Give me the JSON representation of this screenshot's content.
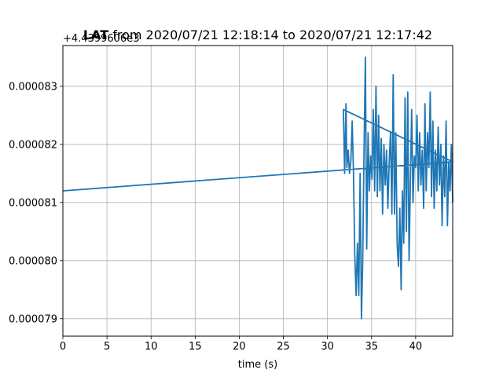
{
  "chart_data": {
    "type": "line",
    "title": "LAT from 2020/07/21 12:18:14 to 2020/07/21 12:17:42",
    "title_bold_part": "LAT",
    "title_rest": " from 2020/07/21 12:18:14 to 2020/07/21 12:17:42",
    "offset_label": "+4.4399606e3",
    "xlabel": "time (s)",
    "ylabel": "",
    "xlim": [
      0,
      44.2
    ],
    "ylim": [
      7.87e-05,
      8.37e-05
    ],
    "xticks": [
      0,
      5,
      10,
      15,
      20,
      25,
      30,
      35,
      40
    ],
    "xtick_labels": [
      "0",
      "5",
      "10",
      "15",
      "20",
      "25",
      "30",
      "35",
      "40"
    ],
    "yticks": [
      7.9e-05,
      8e-05,
      8.1e-05,
      8.2e-05,
      8.3e-05
    ],
    "ytick_labels": [
      "0.000079",
      "0.000080",
      "0.000081",
      "0.000082",
      "0.000083"
    ],
    "grid": true,
    "series": [
      {
        "color": "#1f77b4",
        "x": [
          0,
          44.2,
          31.8,
          31.95,
          32.1,
          32.2,
          32.35,
          32.5,
          32.65,
          32.8,
          32.95,
          33.1,
          33.25,
          33.4,
          33.55,
          33.7,
          33.85,
          34.0,
          34.15,
          34.3,
          34.45,
          34.6,
          34.75,
          34.9,
          35.05,
          35.2,
          35.35,
          35.5,
          35.65,
          35.8,
          35.95,
          36.1,
          36.25,
          36.4,
          36.55,
          36.7,
          36.85,
          37.0,
          37.15,
          37.3,
          37.45,
          37.6,
          37.75,
          37.9,
          38.05,
          38.2,
          38.35,
          38.5,
          38.65,
          38.8,
          38.95,
          39.1,
          39.25,
          39.4,
          39.55,
          39.7,
          39.85,
          40.0,
          40.15,
          40.3,
          40.45,
          40.6,
          40.75,
          40.9,
          41.05,
          41.2,
          41.35,
          41.5,
          41.65,
          41.8,
          41.95,
          42.1,
          42.25,
          42.4,
          42.55,
          42.7,
          42.85,
          43.0,
          43.15,
          43.3,
          43.45,
          43.6,
          43.75,
          43.9,
          44.05,
          44.2
        ],
        "values": [
          8.12e-05,
          8.17e-05,
          8.26e-05,
          8.15e-05,
          8.27e-05,
          8.16e-05,
          8.19e-05,
          8.15e-05,
          8.17e-05,
          8.24e-05,
          8.15e-05,
          8.01e-05,
          7.94e-05,
          8.03e-05,
          7.94e-05,
          8.15e-05,
          7.9e-05,
          8e-05,
          8.19e-05,
          8.35e-05,
          8.02e-05,
          8.22e-05,
          8.12e-05,
          8.18e-05,
          8.14e-05,
          8.26e-05,
          8.12e-05,
          8.3e-05,
          8.11e-05,
          8.25e-05,
          8.12e-05,
          8.21e-05,
          8.08e-05,
          8.2e-05,
          8.13e-05,
          8.19e-05,
          8.09e-05,
          8.17e-05,
          8.22e-05,
          8.08e-05,
          8.32e-05,
          8.08e-05,
          8.22e-05,
          8.03e-05,
          7.99e-05,
          8.09e-05,
          7.95e-05,
          8.12e-05,
          8.03e-05,
          8.28e-05,
          8.05e-05,
          8.29e-05,
          8e-05,
          8.13e-05,
          8.26e-05,
          8.1e-05,
          8.18e-05,
          8.16e-05,
          8.25e-05,
          8.12e-05,
          8.22e-05,
          8.13e-05,
          8.19e-05,
          8.09e-05,
          8.27e-05,
          8.12e-05,
          8.22e-05,
          8.16e-05,
          8.29e-05,
          8.11e-05,
          8.24e-05,
          8.09e-05,
          8.19e-05,
          8.12e-05,
          8.23e-05,
          8.13e-05,
          8.2e-05,
          8.06e-05,
          8.18e-05,
          8.11e-05,
          8.24e-05,
          8.06e-05,
          8.17e-05,
          8.12e-05,
          8.2e-05,
          8.1e-05
        ]
      }
    ]
  }
}
